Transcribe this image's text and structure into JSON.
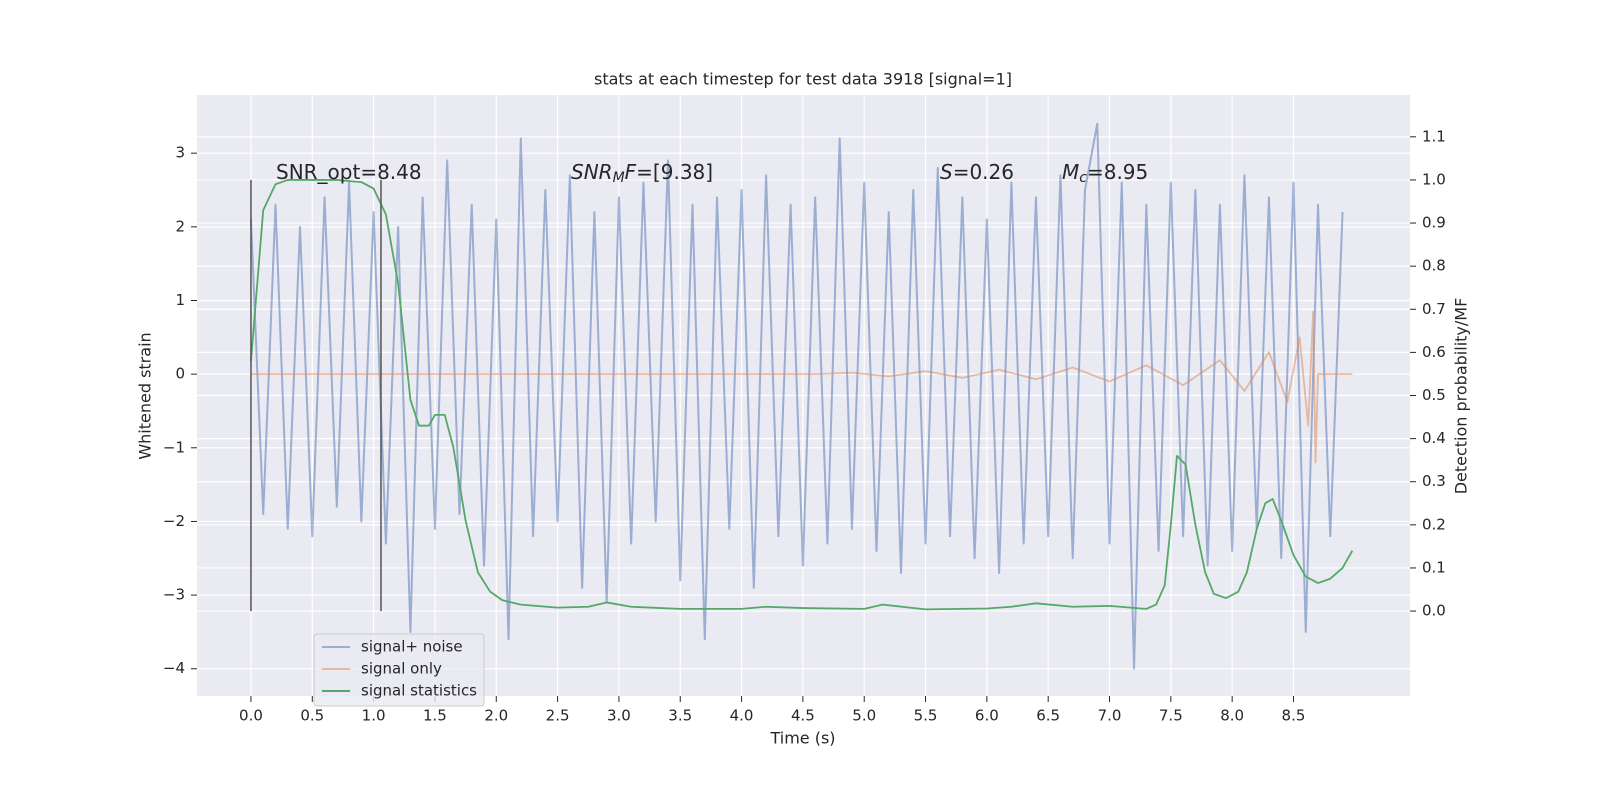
{
  "chart_data": {
    "type": "line",
    "title": "stats at each timestep for test data 3918 [signal=1]",
    "xlabel": "Time (s)",
    "ylabel": "Whitened strain",
    "y2label": "Detection probability/MF",
    "xlim": [
      -0.44,
      9.45
    ],
    "ylim": [
      -4.37,
      3.79
    ],
    "y2lim": [
      -0.197,
      1.197
    ],
    "xticks": [
      {
        "value": 0,
        "label": "0.0"
      },
      0.5,
      {
        "value": 1,
        "label": "1.0"
      },
      1.5,
      {
        "value": 2,
        "label": "2.0"
      },
      2.5,
      {
        "value": 3,
        "label": "3.0"
      },
      3.5,
      {
        "value": 4,
        "label": "4.0"
      },
      4.5,
      {
        "value": 5,
        "label": "5.0"
      },
      5.5,
      {
        "value": 6,
        "label": "6.0"
      },
      6.5,
      {
        "value": 7,
        "label": "7.0"
      },
      7.5,
      {
        "value": 8,
        "label": "8.0"
      },
      8.5
    ],
    "yticks": [
      {
        "value": -4,
        "label": "−4"
      },
      {
        "value": -3,
        "label": "−3"
      },
      {
        "value": -2,
        "label": "−2"
      },
      {
        "value": -1,
        "label": "−1"
      },
      0,
      1,
      2,
      3
    ],
    "y2ticks": [
      {
        "value": 0,
        "label": "0.0"
      },
      0.1,
      0.2,
      0.3,
      0.4,
      0.5,
      0.6,
      0.7,
      0.8,
      0.9,
      {
        "value": 1,
        "label": "1.0"
      },
      1.1
    ],
    "grid": true,
    "legend": "lower left",
    "series": [
      {
        "name": "signal+ noise",
        "color": "#4c72b0",
        "opacity": 0.5,
        "x": [
          0,
          0.1,
          0.2,
          0.3,
          0.4,
          0.5,
          0.6,
          0.7,
          0.8,
          0.9,
          1,
          1.1,
          1.2,
          1.3,
          1.4,
          1.5,
          1.6,
          1.7,
          1.8,
          1.9,
          2,
          2.1,
          2.2,
          2.3,
          2.4,
          2.5,
          2.6,
          2.7,
          2.8,
          2.9,
          3,
          3.1,
          3.2,
          3.3,
          3.4,
          3.5,
          3.6,
          3.7,
          3.8,
          3.9,
          4,
          4.1,
          4.2,
          4.3,
          4.4,
          4.5,
          4.6,
          4.7,
          4.8,
          4.9,
          5,
          5.1,
          5.2,
          5.3,
          5.4,
          5.5,
          5.6,
          5.7,
          5.8,
          5.9,
          6,
          6.1,
          6.2,
          6.3,
          6.4,
          6.5,
          6.6,
          6.7,
          6.8,
          6.9,
          7,
          7.1,
          7.2,
          7.3,
          7.4,
          7.5,
          7.6,
          7.7,
          7.8,
          7.9,
          8,
          8.1,
          8.2,
          8.3,
          8.4,
          8.5,
          8.6,
          8.7,
          8.8,
          8.9
        ],
        "values": [
          2.1,
          -1.9,
          2.3,
          -2.1,
          2.0,
          -2.2,
          2.4,
          -1.8,
          2.6,
          -2.0,
          2.2,
          -2.3,
          2.0,
          -3.5,
          2.4,
          -2.1,
          2.9,
          -1.9,
          2.3,
          -2.6,
          2.1,
          -3.6,
          3.2,
          -2.2,
          2.5,
          -2.0,
          2.7,
          -2.9,
          2.2,
          -3.1,
          2.4,
          -2.3,
          2.6,
          -2.0,
          2.9,
          -2.8,
          2.3,
          -3.6,
          2.4,
          -2.1,
          2.5,
          -2.9,
          2.7,
          -2.2,
          2.3,
          -2.6,
          2.4,
          -2.3,
          3.2,
          -2.1,
          2.6,
          -2.4,
          2.2,
          -2.7,
          2.5,
          -2.3,
          2.8,
          -2.2,
          2.4,
          -2.5,
          2.1,
          -2.7,
          2.6,
          -2.3,
          2.4,
          -2.2,
          2.7,
          -2.5,
          2.5,
          3.4,
          -2.3,
          2.6,
          -4.0,
          2.3,
          -2.4,
          2.6,
          -2.2,
          2.5,
          -2.6,
          2.3,
          -2.4,
          2.7,
          -2.1,
          2.4,
          -2.5,
          2.6,
          -3.5,
          2.3,
          -2.2,
          2.2
        ]
      },
      {
        "name": "signal only",
        "color": "#dd8452",
        "opacity": 0.5,
        "x": [
          0,
          4.6,
          4.9,
          5.2,
          5.5,
          5.8,
          6.1,
          6.4,
          6.7,
          7.0,
          7.3,
          7.6,
          7.9,
          8.1,
          8.3,
          8.45,
          8.55,
          8.62,
          8.66,
          8.68,
          8.7,
          8.98
        ],
        "values": [
          0,
          0,
          0.02,
          -0.03,
          0.04,
          -0.05,
          0.06,
          -0.07,
          0.09,
          -0.1,
          0.12,
          -0.15,
          0.19,
          -0.23,
          0.3,
          -0.38,
          0.5,
          -0.7,
          0.85,
          -1.2,
          0,
          0
        ]
      },
      {
        "name": "signal statistics",
        "color": "#55a868",
        "opacity": 1,
        "axis": "y2",
        "x": [
          0,
          0.1,
          0.2,
          0.3,
          0.5,
          0.7,
          0.9,
          1.0,
          1.1,
          1.2,
          1.3,
          1.37,
          1.45,
          1.5,
          1.58,
          1.65,
          1.75,
          1.85,
          1.95,
          2.05,
          2.2,
          2.5,
          2.75,
          2.9,
          3.1,
          3.5,
          4.0,
          4.2,
          4.5,
          5.0,
          5.15,
          5.5,
          6.0,
          6.2,
          6.4,
          6.7,
          7.0,
          7.3,
          7.38,
          7.45,
          7.5,
          7.55,
          7.62,
          7.7,
          7.78,
          7.85,
          7.95,
          8.05,
          8.12,
          8.2,
          8.27,
          8.33,
          8.4,
          8.5,
          8.6,
          8.7,
          8.8,
          8.9,
          8.98
        ],
        "values": [
          0.58,
          0.93,
          0.99,
          1.0,
          1.0,
          1.0,
          0.995,
          0.98,
          0.92,
          0.76,
          0.49,
          0.43,
          0.43,
          0.455,
          0.455,
          0.38,
          0.21,
          0.09,
          0.045,
          0.025,
          0.015,
          0.008,
          0.01,
          0.02,
          0.01,
          0.005,
          0.005,
          0.01,
          0.007,
          0.005,
          0.015,
          0.004,
          0.006,
          0.01,
          0.018,
          0.01,
          0.012,
          0.005,
          0.015,
          0.06,
          0.2,
          0.36,
          0.34,
          0.2,
          0.09,
          0.04,
          0.03,
          0.045,
          0.09,
          0.19,
          0.25,
          0.26,
          0.21,
          0.13,
          0.08,
          0.065,
          0.075,
          0.1,
          0.14
        ]
      }
    ],
    "vlines": {
      "x": [
        0,
        1.06
      ],
      "span": [
        0,
        1
      ],
      "axis": "y2",
      "color": "#555555"
    },
    "annotations": [
      [
        {
          "t": "SNR_opt=8.48"
        }
      ],
      [
        {
          "t": "SNR",
          "style": "italic"
        },
        {
          "t": "M",
          "style": "sub"
        },
        {
          "t": "F",
          "style": "italic"
        },
        {
          "t": "=[9.38]"
        }
      ],
      [
        {
          "t": "S",
          "style": "italic"
        },
        {
          "t": "=0.26"
        }
      ],
      [
        {
          "t": "M",
          "style": "italic"
        },
        {
          "t": "c",
          "style": "sub"
        },
        {
          "t": "=8.95"
        }
      ]
    ]
  }
}
